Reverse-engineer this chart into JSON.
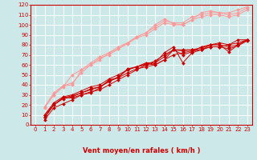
{
  "xlabel": "Vent moyen/en rafales ( km/h )",
  "background_color": "#cce8e8",
  "grid_color": "#ffffff",
  "xlim": [
    -0.5,
    23.5
  ],
  "ylim": [
    0,
    120
  ],
  "yticks": [
    0,
    10,
    20,
    30,
    40,
    50,
    60,
    70,
    80,
    90,
    100,
    110,
    120
  ],
  "xticks": [
    0,
    1,
    2,
    3,
    4,
    5,
    6,
    7,
    8,
    9,
    10,
    11,
    12,
    13,
    14,
    15,
    16,
    17,
    18,
    19,
    20,
    21,
    22,
    23
  ],
  "lines_dark": [
    [
      5,
      17,
      21,
      25,
      30,
      33,
      35,
      40,
      45,
      50,
      55,
      60,
      62,
      72,
      78,
      62,
      72,
      75,
      78,
      78,
      80,
      85,
      85
    ],
    [
      7,
      20,
      26,
      28,
      32,
      35,
      38,
      43,
      48,
      55,
      58,
      60,
      64,
      70,
      75,
      70,
      73,
      78,
      80,
      80,
      73,
      80,
      85
    ],
    [
      8,
      20,
      27,
      29,
      32,
      36,
      38,
      44,
      47,
      56,
      58,
      61,
      60,
      65,
      75,
      74,
      75,
      75,
      80,
      82,
      80,
      82,
      85
    ],
    [
      10,
      22,
      28,
      30,
      34,
      38,
      40,
      46,
      50,
      55,
      58,
      62,
      62,
      68,
      75,
      75,
      75,
      77,
      80,
      80,
      78,
      80,
      85
    ],
    [
      10,
      20,
      27,
      27,
      30,
      32,
      37,
      45,
      47,
      52,
      56,
      58,
      60,
      65,
      70,
      72,
      74,
      75,
      78,
      78,
      76,
      79,
      84
    ]
  ],
  "lines_dark_xstart": [
    1,
    1,
    1,
    1,
    1
  ],
  "lines_light": [
    [
      17,
      30,
      38,
      50,
      55,
      60,
      65,
      72,
      78,
      82,
      88,
      92,
      100,
      106,
      101,
      100,
      105,
      112,
      114,
      112,
      112,
      115,
      118
    ],
    [
      18,
      30,
      39,
      40,
      55,
      62,
      68,
      72,
      76,
      82,
      88,
      92,
      98,
      104,
      102,
      102,
      108,
      110,
      112,
      112,
      110,
      112,
      117
    ],
    [
      18,
      32,
      39,
      42,
      52,
      60,
      67,
      70,
      76,
      81,
      87,
      90,
      96,
      102,
      100,
      100,
      105,
      108,
      110,
      110,
      108,
      110,
      115
    ]
  ],
  "lines_light_xstart": [
    1,
    1,
    1
  ],
  "dark_color": "#cc0000",
  "light_color": "#ff9999",
  "marker": "D",
  "marker_size": 2.0,
  "xlabel_color": "#cc0000",
  "xlabel_fontsize": 6,
  "tick_color": "#cc0000",
  "tick_fontsize": 5,
  "arrow_symbol": "↓",
  "arrow_fontsize": 6
}
